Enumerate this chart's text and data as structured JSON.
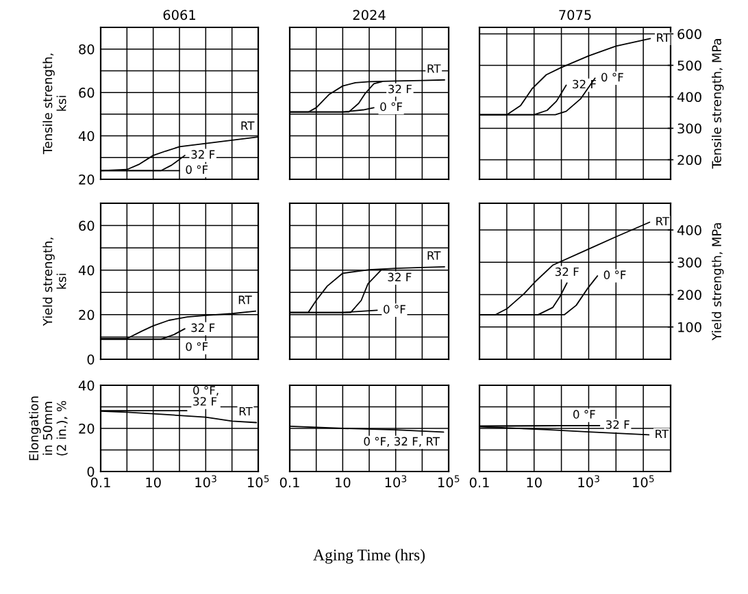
{
  "chart_data": [
    {
      "type": "line",
      "title": "6061",
      "ylabel": "Tensile strength,\nksi",
      "log": "x",
      "grid": true,
      "tick_labels": "y",
      "xlim": [
        0.1,
        100000
      ],
      "ylim": [
        20,
        90
      ],
      "xticks": [
        {
          "value": 1,
          "label": null
        },
        {
          "value": 10,
          "label": null
        },
        {
          "value": 100,
          "label": null
        },
        {
          "value": 1000,
          "label": null
        },
        {
          "value": 10000,
          "label": null
        }
      ],
      "yticks": [
        20,
        {
          "value": 30,
          "label": null
        },
        40,
        {
          "value": 50,
          "label": null
        },
        60,
        {
          "value": 70,
          "label": null
        },
        80,
        {
          "value": 90,
          "label": null
        }
      ],
      "series": [
        {
          "name": "RT",
          "color": "#000000",
          "x": [
            0.1,
            1,
            3,
            10,
            30,
            100,
            1000,
            10000,
            100000
          ],
          "values": [
            24,
            24.5,
            27,
            31,
            33,
            35,
            36.5,
            38,
            39.5
          ]
        },
        {
          "name": "32 F",
          "color": "#000000",
          "x": [
            0.1,
            20,
            50,
            160
          ],
          "values": [
            24,
            24,
            26.5,
            31
          ]
        },
        {
          "name": "0 °F",
          "color": "#000000",
          "x": [
            0.1,
            100
          ],
          "values": [
            24,
            24
          ]
        }
      ]
    },
    {
      "type": "line",
      "title": "2024",
      "log": "x",
      "grid": true,
      "tick_labels": false,
      "xlim": [
        0.1,
        100000
      ],
      "ylim": [
        20,
        90
      ],
      "xticks": [
        {
          "value": 1,
          "label": null
        },
        {
          "value": 10,
          "label": null
        },
        {
          "value": 100,
          "label": null
        },
        {
          "value": 1000,
          "label": null
        },
        {
          "value": 10000,
          "label": null
        }
      ],
      "yticks": [
        {
          "value": 30,
          "label": null
        },
        {
          "value": 40,
          "label": null
        },
        {
          "value": 50,
          "label": null
        },
        {
          "value": 60,
          "label": null
        },
        {
          "value": 70,
          "label": null
        },
        {
          "value": 80,
          "label": null
        }
      ],
      "series": [
        {
          "name": "RT",
          "color": "#000000",
          "x": [
            0.1,
            0.5,
            1,
            3,
            10,
            30,
            100,
            1000,
            10000,
            70000
          ],
          "values": [
            51,
            51,
            53,
            59,
            63,
            64.5,
            65,
            65.3,
            65.5,
            65.8
          ]
        },
        {
          "name": "32 F",
          "color": "#000000",
          "x": [
            0.1,
            17,
            40,
            70,
            150,
            300
          ],
          "values": [
            51,
            51,
            55,
            59.5,
            64,
            65
          ]
        },
        {
          "name": "0 °F",
          "color": "#000000",
          "x": [
            0.1,
            10,
            60,
            150
          ],
          "values": [
            51,
            51,
            52,
            53
          ]
        }
      ]
    },
    {
      "type": "line",
      "title": "7075",
      "y2label": "Tensile strength, MPa",
      "log": "x",
      "grid": true,
      "tick_labels": "y",
      "xlim": [
        0.1,
        1000000
      ],
      "y2lim": [
        137.9,
        620.6
      ],
      "xticks": [
        {
          "value": 1,
          "label": null
        },
        {
          "value": 10,
          "label": null
        },
        {
          "value": 100,
          "label": null
        },
        {
          "value": 1000,
          "label": null
        },
        {
          "value": 10000,
          "label": null
        },
        {
          "value": 100000,
          "label": null
        }
      ],
      "y2ticks": [
        200,
        300,
        400,
        500,
        600
      ],
      "series": [
        {
          "name": "RT",
          "color": "#000000",
          "axis": "y2",
          "x": [
            0.1,
            1,
            3.2,
            8.5,
            28,
            93,
            1000,
            10000,
            180000
          ],
          "values": [
            343,
            343,
            372,
            426,
            470,
            492,
            530,
            561,
            585
          ]
        },
        {
          "name": "32 F",
          "color": "#000000",
          "axis": "y2",
          "x": [
            0.1,
            10,
            30,
            66,
            150
          ],
          "values": [
            343,
            343,
            357,
            386,
            437
          ]
        },
        {
          "name": "0 °F",
          "color": "#000000",
          "axis": "y2",
          "x": [
            0.1,
            60,
            150,
            500,
            1700
          ],
          "values": [
            343,
            343,
            354,
            393,
            459
          ]
        }
      ]
    },
    {
      "type": "line",
      "ylabel": "Yield strength,\nksi",
      "log": "x",
      "grid": true,
      "tick_labels": "y",
      "xlim": [
        0.1,
        100000
      ],
      "ylim": [
        0,
        70
      ],
      "xticks": [
        {
          "value": 1,
          "label": null
        },
        {
          "value": 10,
          "label": null
        },
        {
          "value": 100,
          "label": null
        },
        {
          "value": 1000,
          "label": null
        },
        {
          "value": 10000,
          "label": null
        }
      ],
      "yticks": [
        0,
        {
          "value": 10,
          "label": null
        },
        20,
        {
          "value": 30,
          "label": null
        },
        40,
        {
          "value": 50,
          "label": null
        },
        60,
        {
          "value": 70,
          "label": null
        }
      ],
      "series": [
        {
          "name": "RT",
          "color": "#000000",
          "x": [
            0.1,
            1,
            3.8,
            10,
            40,
            200,
            1000,
            10000,
            80000
          ],
          "values": [
            9.3,
            9.3,
            12.7,
            15,
            17.5,
            19,
            19.7,
            20.5,
            21.6
          ]
        },
        {
          "name": "32 F",
          "color": "#000000",
          "x": [
            0.1,
            20,
            60,
            160
          ],
          "values": [
            9,
            9,
            11,
            13.7
          ]
        },
        {
          "name": "0 °F",
          "color": "#000000",
          "x": [
            0.1,
            100
          ],
          "values": [
            9,
            9
          ]
        }
      ]
    },
    {
      "type": "line",
      "log": "x",
      "grid": true,
      "tick_labels": false,
      "xlim": [
        0.1,
        100000
      ],
      "ylim": [
        0,
        70
      ],
      "xticks": [
        {
          "value": 1,
          "label": null
        },
        {
          "value": 10,
          "label": null
        },
        {
          "value": 100,
          "label": null
        },
        {
          "value": 1000,
          "label": null
        },
        {
          "value": 10000,
          "label": null
        }
      ],
      "yticks": [
        {
          "value": 10,
          "label": null
        },
        {
          "value": 20,
          "label": null
        },
        {
          "value": 30,
          "label": null
        },
        {
          "value": 40,
          "label": null
        },
        {
          "value": 50,
          "label": null
        },
        {
          "value": 60,
          "label": null
        }
      ],
      "series": [
        {
          "name": "RT",
          "color": "#000000",
          "x": [
            0.1,
            0.5,
            1,
            2.6,
            10,
            100,
            1000,
            10000,
            70000
          ],
          "values": [
            21,
            21,
            26.4,
            32.8,
            38.6,
            40.2,
            40.8,
            41.2,
            41.5
          ]
        },
        {
          "name": "32 F",
          "color": "#000000",
          "x": [
            0.1,
            20,
            50,
            90,
            290
          ],
          "values": [
            21,
            21,
            26.4,
            33.9,
            40.2
          ]
        },
        {
          "name": "0 °F",
          "color": "#000000",
          "x": [
            0.1,
            10,
            200
          ],
          "values": [
            21,
            21,
            22
          ]
        }
      ]
    },
    {
      "type": "line",
      "y2label": "Yield strength, MPa",
      "log": "x",
      "grid": true,
      "tick_labels": "y",
      "xlim": [
        0.1,
        1000000
      ],
      "y2lim": [
        0,
        482.7
      ],
      "xticks": [
        {
          "value": 1,
          "label": null
        },
        {
          "value": 10,
          "label": null
        },
        {
          "value": 100,
          "label": null
        },
        {
          "value": 1000,
          "label": null
        },
        {
          "value": 10000,
          "label": null
        },
        {
          "value": 100000,
          "label": null
        }
      ],
      "y2ticks": [
        100,
        200,
        300,
        400
      ],
      "series": [
        {
          "name": "RT",
          "color": "#000000",
          "axis": "y2",
          "x": [
            0.1,
            0.39,
            1,
            4.3,
            12,
            48,
            1000,
            10000,
            170000
          ],
          "values": [
            138,
            138,
            156,
            203,
            243,
            291,
            341,
            379,
            424
          ]
        },
        {
          "name": "32 F",
          "color": "#000000",
          "axis": "y2",
          "x": [
            0.1,
            14,
            48,
            87,
            160
          ],
          "values": [
            138,
            138,
            160,
            193,
            236
          ]
        },
        {
          "name": "0 °F",
          "color": "#000000",
          "axis": "y2",
          "x": [
            0.1,
            130,
            350,
            950,
            2100
          ],
          "values": [
            138,
            138,
            167,
            221,
            258
          ]
        }
      ]
    },
    {
      "type": "line",
      "ylabel": "Elongation\nin 50mm\n(2 in.), %",
      "log": "x",
      "grid": true,
      "xlim": [
        0.1,
        100000
      ],
      "ylim": [
        0,
        40
      ],
      "xticks": [
        {
          "value": 0.1,
          "label": "0.1"
        },
        {
          "value": 1,
          "label": null
        },
        {
          "value": 10,
          "label": "10"
        },
        {
          "value": 100,
          "label": null
        },
        {
          "value": 1000,
          "label": "10$^{3}$"
        },
        {
          "value": 10000,
          "label": null
        },
        {
          "value": 100000,
          "label": "10$^{5}$"
        }
      ],
      "yticks": [
        0,
        {
          "value": 10,
          "label": null
        },
        20,
        {
          "value": 30,
          "label": null
        },
        40
      ],
      "series": [
        {
          "name": "RT",
          "color": "#000000",
          "x": [
            0.1,
            1,
            10,
            1000,
            10000,
            85000
          ],
          "values": [
            28,
            27.5,
            26.8,
            25.2,
            23.4,
            22.7
          ]
        },
        {
          "name": "0 °F,\n32 F",
          "color": "#000000",
          "x": [
            0.1,
            190
          ],
          "values": [
            28.2,
            28.2
          ]
        }
      ]
    },
    {
      "type": "line",
      "xlabel": "Aging Time (hrs)",
      "log": "x",
      "grid": true,
      "tick_labels": "x",
      "xlim": [
        0.1,
        100000
      ],
      "ylim": [
        0,
        40
      ],
      "xticks": [
        {
          "value": 0.1,
          "label": "0.1"
        },
        {
          "value": 1,
          "label": null
        },
        {
          "value": 10,
          "label": "10"
        },
        {
          "value": 100,
          "label": null
        },
        {
          "value": 1000,
          "label": "10$^{3}$"
        },
        {
          "value": 10000,
          "label": null
        },
        {
          "value": 100000,
          "label": "10$^{5}$"
        }
      ],
      "yticks": [
        {
          "value": 10,
          "label": null
        },
        {
          "value": 20,
          "label": null
        },
        {
          "value": 30,
          "label": null
        }
      ],
      "series": [
        {
          "name": "0 °F, 32 F, RT",
          "color": "#000000",
          "x": [
            0.1,
            10,
            1000,
            64000
          ],
          "values": [
            21,
            20,
            19.3,
            18.3
          ]
        }
      ]
    },
    {
      "type": "line",
      "log": "x",
      "grid": true,
      "tick_labels": "x",
      "xlim": [
        0.1,
        1000000
      ],
      "ylim": [
        0,
        40
      ],
      "xticks": [
        {
          "value": 0.1,
          "label": "0.1"
        },
        {
          "value": 1,
          "label": null
        },
        {
          "value": 10,
          "label": "10"
        },
        {
          "value": 100,
          "label": null
        },
        {
          "value": 1000,
          "label": "10$^{3}$"
        },
        {
          "value": 10000,
          "label": null
        },
        {
          "value": 100000,
          "label": "10$^{5}$"
        }
      ],
      "yticks": [
        {
          "value": 10,
          "label": null
        },
        {
          "value": 20,
          "label": null
        },
        {
          "value": 30,
          "label": null
        }
      ],
      "series": [
        {
          "name": "RT",
          "color": "#000000",
          "x": [
            0.1,
            30,
            1000,
            160000
          ],
          "values": [
            20.8,
            19.4,
            18.4,
            17
          ]
        },
        {
          "name": "32 F",
          "color": "#000000",
          "x": [
            0.1,
            2500
          ],
          "values": [
            21.1,
            21.3
          ]
        },
        {
          "name": "0 °F",
          "color": "#000000",
          "x": [
            0.1,
            2500
          ],
          "values": [
            21.1,
            21.3
          ]
        }
      ]
    }
  ]
}
